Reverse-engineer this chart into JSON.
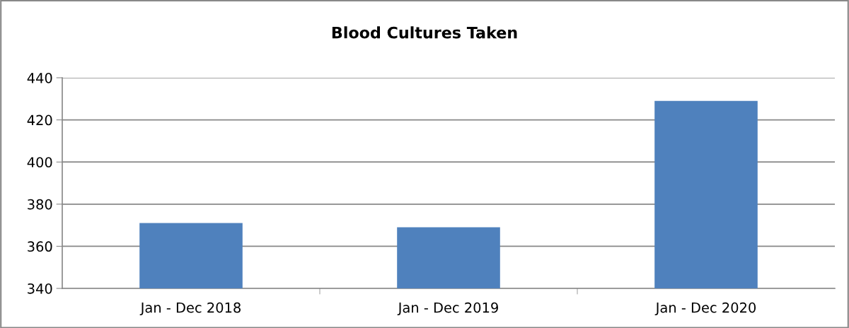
{
  "chart_data": {
    "type": "bar",
    "title": "Blood Cultures Taken",
    "categories": [
      "Jan - Dec 2018",
      "Jan - Dec 2019",
      "Jan - Dec 2020"
    ],
    "values": [
      371,
      369,
      429
    ],
    "color": "#4f81bd",
    "ylim": [
      340,
      440
    ],
    "yticks": [
      340,
      360,
      380,
      400,
      420,
      440
    ],
    "grid": "y",
    "legend": false
  }
}
